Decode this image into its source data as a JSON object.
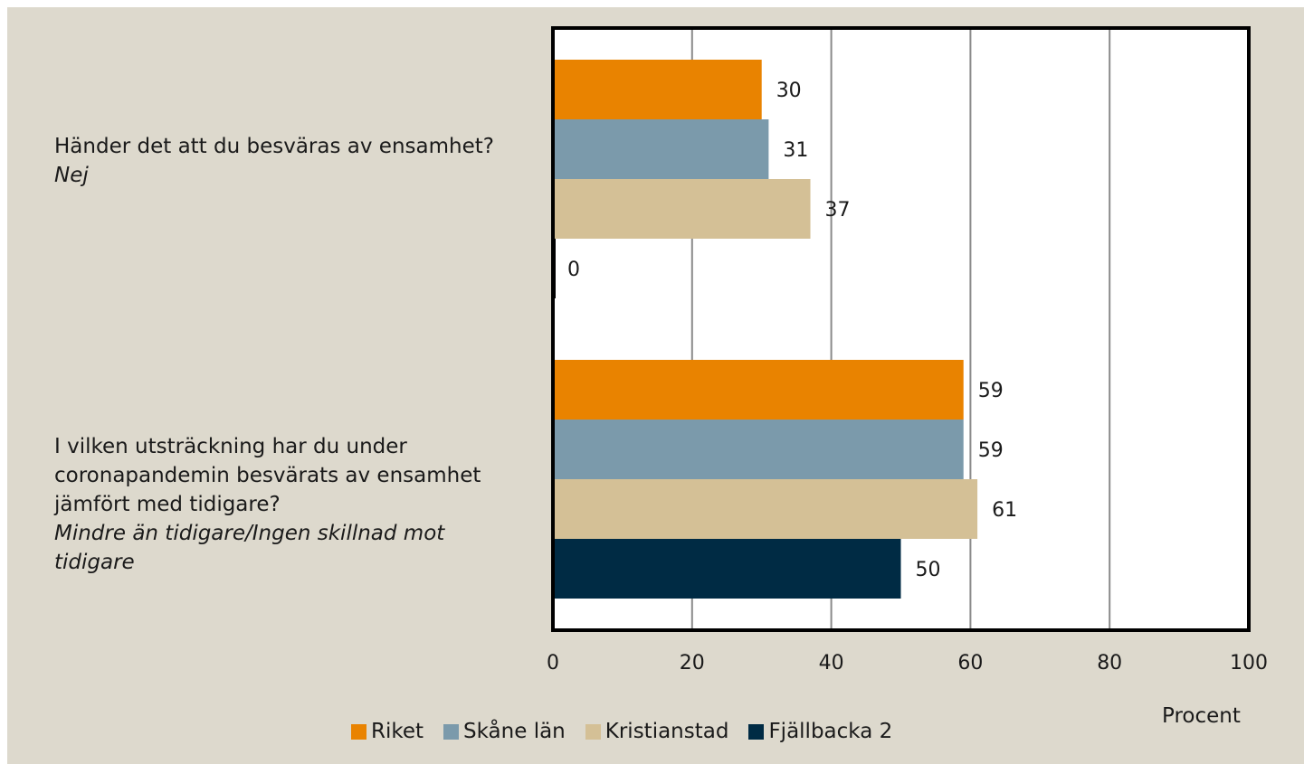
{
  "chart_data": {
    "type": "bar",
    "orientation": "horizontal",
    "categories": [
      {
        "main": "Händer det att du besväras av ensamhet?",
        "sub": "Nej"
      },
      {
        "main": "I vilken utsträckning har du under coronapandemin besvärats av ensamhet jämfört med tidigare?",
        "sub": "Mindre än tidigare/Ingen skillnad mot tidigare"
      }
    ],
    "series": [
      {
        "name": "Riket",
        "color": "#e98300",
        "values": [
          30,
          59
        ]
      },
      {
        "name": "Skåne län",
        "color": "#7b9aab",
        "values": [
          31,
          59
        ]
      },
      {
        "name": "Kristianstad",
        "color": "#d4c096",
        "values": [
          37,
          61
        ]
      },
      {
        "name": "Fjällbacka 2",
        "color": "#002b44",
        "values": [
          0,
          50
        ]
      }
    ],
    "xlim": [
      0,
      100
    ],
    "xticks": [
      "0",
      "20",
      "40",
      "60",
      "80",
      "100"
    ],
    "xlabel": "Procent",
    "grid": true,
    "legend_position": "bottom"
  }
}
